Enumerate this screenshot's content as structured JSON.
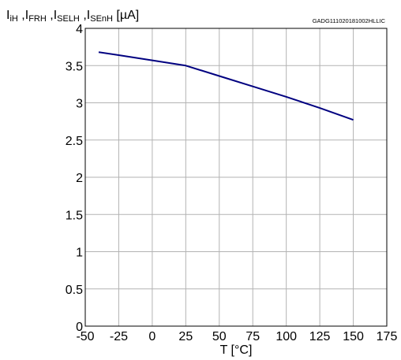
{
  "chart_data": {
    "type": "line",
    "code": "GADG111020181002HLLIC",
    "ylabel": {
      "parts": [
        {
          "main": "I",
          "sub": "iH"
        },
        {
          "sep": " ,"
        },
        {
          "main": "I",
          "sub": "FRH"
        },
        {
          "sep": " ,"
        },
        {
          "main": "I",
          "sub": "SELH"
        },
        {
          "sep": " ,"
        },
        {
          "main": "I",
          "sub": "SEnH"
        },
        {
          "sep": " [µA]"
        }
      ]
    },
    "xlabel": "T [°C]",
    "xlim": [
      -50,
      175
    ],
    "ylim": [
      0,
      4
    ],
    "xticks": [
      -50,
      -25,
      0,
      25,
      50,
      75,
      100,
      125,
      150,
      175
    ],
    "yticks": [
      0,
      0.5,
      1,
      1.5,
      2,
      2.5,
      3,
      3.5,
      4
    ],
    "grid": true,
    "line_color": "#000080",
    "series": [
      {
        "x": [
          -40,
          -25,
          0,
          25,
          50,
          75,
          100,
          125,
          150
        ],
        "y": [
          3.68,
          3.64,
          3.57,
          3.5,
          3.36,
          3.22,
          3.08,
          2.93,
          2.77
        ]
      }
    ]
  }
}
